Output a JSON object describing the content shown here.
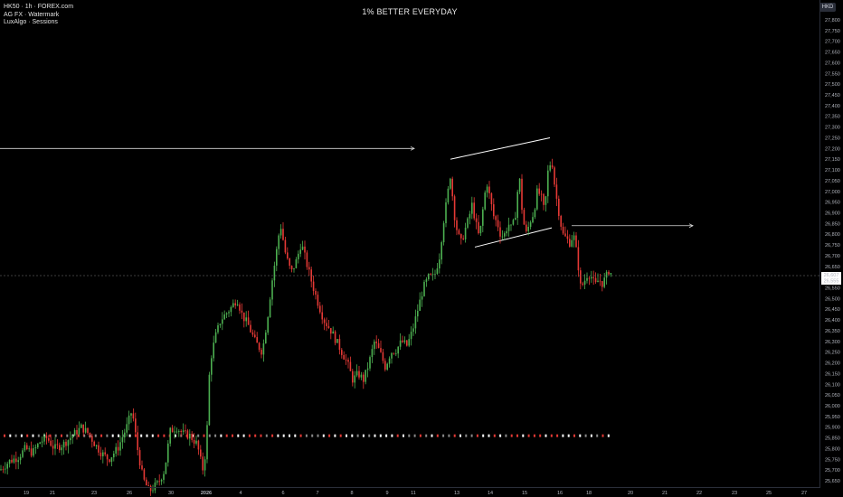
{
  "header": {
    "symbol_line": "HK50 · 1h · FOREX.com",
    "indicator_1": "AG FX · Watermark",
    "indicator_2": "LuxAlgo · Sessions",
    "watermark_title": "1% BETTER EVERYDAY",
    "currency": "HKD"
  },
  "colors": {
    "background": "#000000",
    "up": "#4caf50",
    "down": "#e53935",
    "axis_text": "#b2b5be",
    "drawing": "#d9d9d9"
  },
  "chart_data": {
    "type": "candlestick",
    "timeframe": "1h",
    "ylim": [
      25650,
      27850
    ],
    "y_ticks": [
      25650,
      25700,
      25750,
      25800,
      25850,
      25900,
      25950,
      26000,
      26050,
      26100,
      26150,
      26200,
      26250,
      26300,
      26350,
      26400,
      26450,
      26500,
      26550,
      26600,
      26650,
      26700,
      26750,
      26800,
      26850,
      26900,
      26950,
      27000,
      27050,
      27100,
      27150,
      27200,
      27250,
      27300,
      27350,
      27400,
      27450,
      27500,
      27550,
      27600,
      27650,
      27700,
      27750,
      27800
    ],
    "x_labels": [
      "19",
      "21",
      "23",
      "26",
      "30",
      "2026",
      "4",
      "6",
      "7",
      "8",
      "9",
      "11",
      "13",
      "14",
      "15",
      "16",
      "18",
      "20",
      "21",
      "22",
      "23",
      "25",
      "27"
    ],
    "last_price": "26,607",
    "last_price_sub": "26,555",
    "anchors": [
      [
        0,
        25700
      ],
      [
        10,
        25740
      ],
      [
        20,
        25760
      ],
      [
        28,
        25800
      ],
      [
        36,
        25780
      ],
      [
        44,
        25830
      ],
      [
        52,
        25850
      ],
      [
        60,
        25800
      ],
      [
        70,
        25820
      ],
      [
        80,
        25860
      ],
      [
        90,
        25900
      ],
      [
        98,
        25870
      ],
      [
        105,
        25820
      ],
      [
        112,
        25780
      ],
      [
        120,
        25750
      ],
      [
        130,
        25800
      ],
      [
        140,
        25900
      ],
      [
        146,
        25980
      ],
      [
        152,
        25800
      ],
      [
        158,
        25660
      ],
      [
        165,
        25600
      ],
      [
        175,
        25640
      ],
      [
        182,
        25700
      ],
      [
        188,
        25880
      ],
      [
        195,
        25900
      ],
      [
        202,
        25870
      ],
      [
        210,
        25860
      ],
      [
        218,
        25820
      ],
      [
        224,
        25700
      ],
      [
        228,
        25800
      ],
      [
        232,
        26200
      ],
      [
        238,
        26320
      ],
      [
        244,
        26400
      ],
      [
        250,
        26430
      ],
      [
        256,
        26460
      ],
      [
        262,
        26500
      ],
      [
        268,
        26420
      ],
      [
        274,
        26380
      ],
      [
        282,
        26300
      ],
      [
        290,
        26250
      ],
      [
        296,
        26420
      ],
      [
        300,
        26560
      ],
      [
        305,
        26700
      ],
      [
        310,
        26850
      ],
      [
        316,
        26700
      ],
      [
        322,
        26620
      ],
      [
        328,
        26680
      ],
      [
        333,
        26760
      ],
      [
        338,
        26680
      ],
      [
        343,
        26600
      ],
      [
        350,
        26500
      ],
      [
        358,
        26400
      ],
      [
        366,
        26350
      ],
      [
        372,
        26300
      ],
      [
        378,
        26250
      ],
      [
        384,
        26200
      ],
      [
        390,
        26120
      ],
      [
        396,
        26150
      ],
      [
        402,
        26120
      ],
      [
        408,
        26200
      ],
      [
        414,
        26300
      ],
      [
        420,
        26250
      ],
      [
        426,
        26180
      ],
      [
        432,
        26250
      ],
      [
        438,
        26260
      ],
      [
        444,
        26300
      ],
      [
        450,
        26280
      ],
      [
        456,
        26350
      ],
      [
        462,
        26450
      ],
      [
        468,
        26550
      ],
      [
        474,
        26600
      ],
      [
        480,
        26600
      ],
      [
        486,
        26700
      ],
      [
        490,
        26850
      ],
      [
        494,
        26960
      ],
      [
        498,
        27080
      ],
      [
        502,
        26900
      ],
      [
        506,
        26800
      ],
      [
        510,
        26760
      ],
      [
        514,
        26820
      ],
      [
        518,
        26870
      ],
      [
        522,
        26940
      ],
      [
        526,
        26850
      ],
      [
        530,
        26780
      ],
      [
        534,
        26920
      ],
      [
        538,
        27050
      ],
      [
        542,
        26960
      ],
      [
        546,
        26880
      ],
      [
        550,
        26850
      ],
      [
        554,
        26790
      ],
      [
        558,
        26800
      ],
      [
        562,
        26850
      ],
      [
        566,
        26820
      ],
      [
        570,
        26900
      ],
      [
        574,
        27080
      ],
      [
        578,
        26870
      ],
      [
        582,
        26800
      ],
      [
        586,
        26860
      ],
      [
        590,
        26900
      ],
      [
        594,
        27000
      ],
      [
        598,
        26980
      ],
      [
        602,
        26900
      ],
      [
        606,
        27100
      ],
      [
        610,
        27150
      ],
      [
        614,
        27000
      ],
      [
        618,
        26900
      ],
      [
        622,
        26800
      ],
      [
        626,
        26780
      ],
      [
        630,
        26760
      ],
      [
        634,
        26800
      ],
      [
        638,
        26700
      ],
      [
        642,
        26550
      ],
      [
        646,
        26580
      ],
      [
        650,
        26620
      ],
      [
        654,
        26600
      ],
      [
        658,
        26560
      ],
      [
        662,
        26590
      ],
      [
        666,
        26570
      ],
      [
        670,
        26600
      ],
      [
        674,
        26640
      ],
      [
        676,
        26610
      ]
    ],
    "drawings": {
      "horizontal_ray_1": {
        "x": [
          0,
          458
        ],
        "price": 27200
      },
      "horizontal_ray_2": {
        "x": [
          632,
          766
        ],
        "price": 26840
      },
      "channel_upper": {
        "x": [
          498,
          608
        ],
        "price": [
          27150,
          27250
        ]
      },
      "channel_lower": {
        "x": [
          525,
          610
        ],
        "price": [
          26740,
          26830
        ]
      }
    },
    "sessions_marker_price": 25860
  }
}
